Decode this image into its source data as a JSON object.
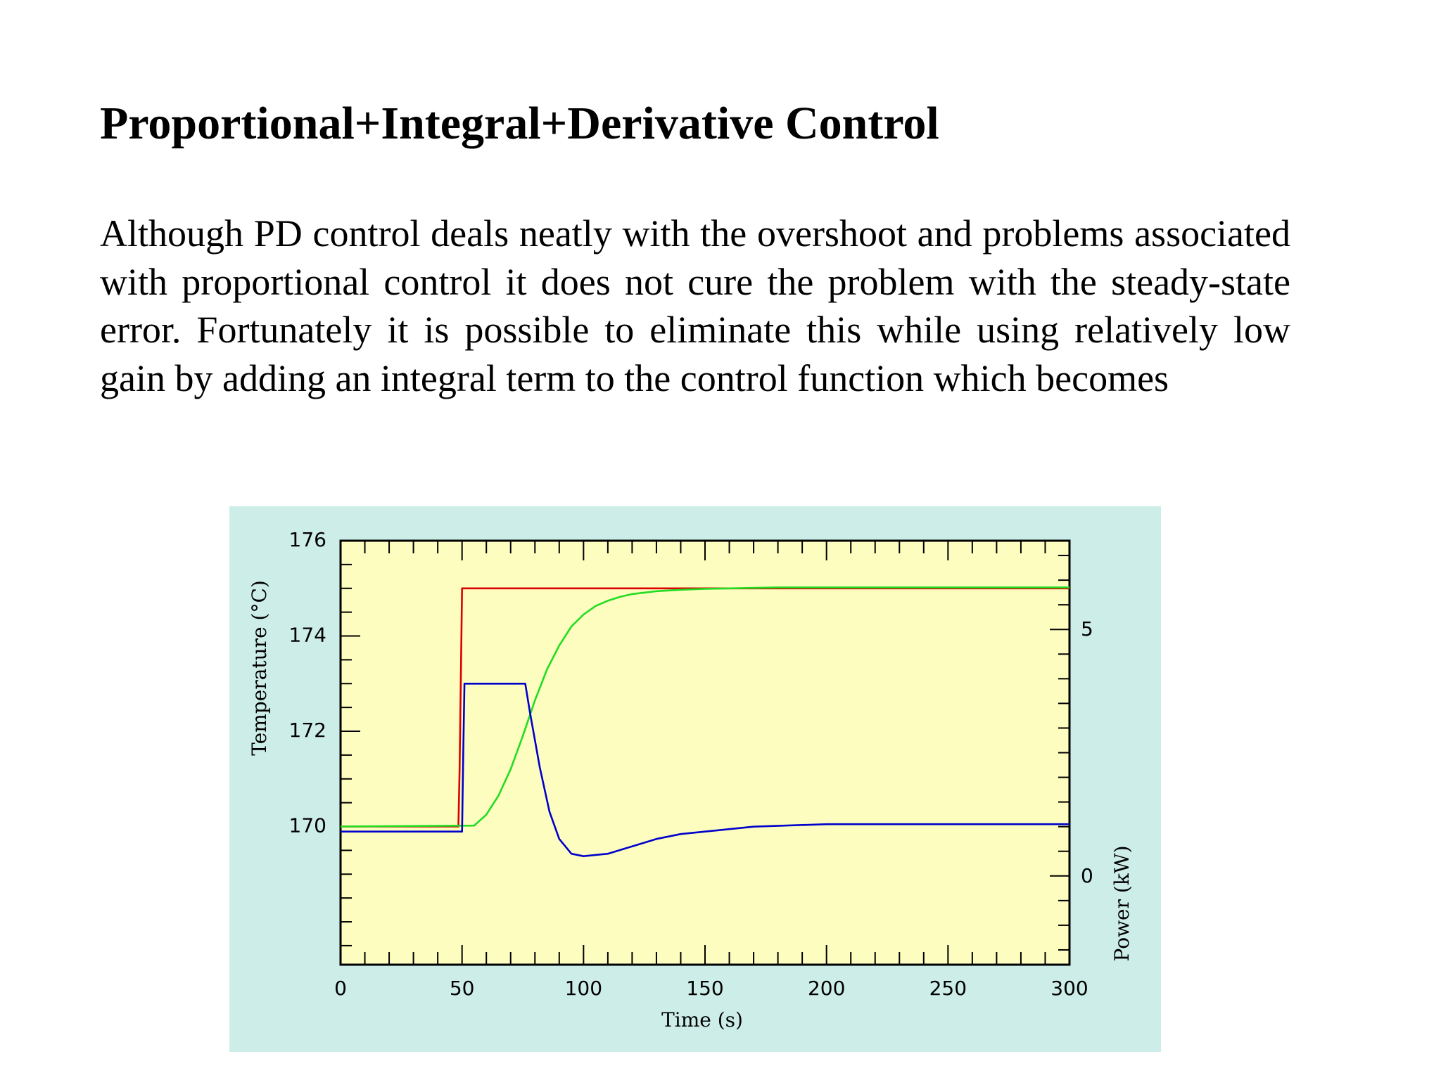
{
  "slide": {
    "title": "Proportional+Integral+Derivative Control",
    "paragraph": "Although PD control deals neatly with the overshoot and problems associated with proportional control it does not cure the problem with the steady-state error. Fortunately it is possible to eliminate this while using relatively low gain by adding an integral term to the control function which becomes"
  },
  "chart_data": {
    "type": "line",
    "title": "",
    "xlabel": "Time (s)",
    "ylabel": "Temperature (°C)",
    "y2label": "Power (kW)",
    "xlim": [
      0,
      300
    ],
    "ylim": [
      167.1,
      176
    ],
    "y2lim": [
      -1.8,
      6.8
    ],
    "xticks": [
      0,
      50,
      100,
      150,
      200,
      250,
      300
    ],
    "yticks": [
      170,
      172,
      174,
      176
    ],
    "y2ticks": [
      0,
      5
    ],
    "grid": false,
    "legend": "none",
    "colors": {
      "figure_background": "#cdeee8",
      "plot_background": "#fdfdc0",
      "setpoint": "#dd0000",
      "temperature": "#22dd22",
      "power": "#0000cc"
    },
    "series": [
      {
        "axis": "left",
        "color": "#dd0000",
        "x": [
          0,
          48.5,
          49,
          50,
          300
        ],
        "y": [
          170,
          170,
          171.2,
          175,
          175
        ]
      },
      {
        "axis": "left",
        "color": "#22dd22",
        "x": [
          0,
          55,
          60,
          65,
          70,
          75,
          80,
          85,
          90,
          95,
          100,
          105,
          110,
          115,
          120,
          130,
          140,
          150,
          160,
          180,
          200,
          250,
          300
        ],
        "y": [
          170,
          170.02,
          170.25,
          170.65,
          171.2,
          171.9,
          172.65,
          173.3,
          173.8,
          174.2,
          174.45,
          174.63,
          174.74,
          174.82,
          174.88,
          174.94,
          174.97,
          174.99,
          175,
          175.02,
          175.02,
          175.02,
          175.02
        ]
      },
      {
        "axis": "right",
        "color": "#0000cc",
        "x": [
          0,
          50,
          50.5,
          51,
          76,
          78,
          82,
          86,
          90,
          95,
          100,
          110,
          120,
          130,
          140,
          150,
          160,
          170,
          200,
          250,
          300
        ],
        "y": [
          0.9,
          0.9,
          2.5,
          3.9,
          3.9,
          3.3,
          2.2,
          1.3,
          0.75,
          0.45,
          0.4,
          0.45,
          0.6,
          0.75,
          0.85,
          0.9,
          0.95,
          1.0,
          1.05,
          1.05,
          1.05
        ]
      }
    ]
  }
}
